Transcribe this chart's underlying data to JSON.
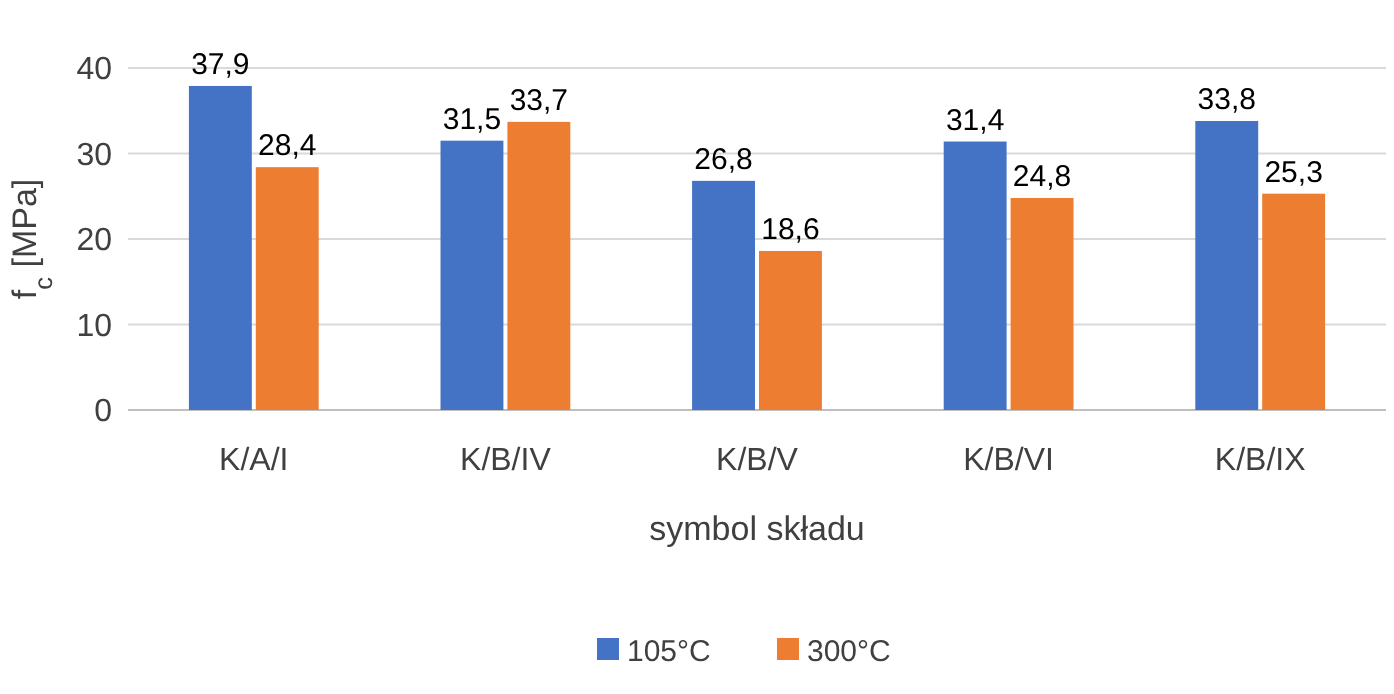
{
  "chart_data": {
    "type": "bar",
    "xlabel": "symbol składu",
    "ylabel": "f$_{c}$ [MPa]",
    "categories": [
      "K/A/I",
      "K/B/IV",
      "K/B/V",
      "K/B/VI",
      "K/B/IX"
    ],
    "series": [
      {
        "name": "105°C",
        "color": "#4472c4",
        "values": [
          37.9,
          31.5,
          26.8,
          31.4,
          33.8
        ],
        "value_labels": [
          "37,9",
          "31,5",
          "26,8",
          "31,4",
          "33,8"
        ]
      },
      {
        "name": "300°C",
        "color": "#ed7d31",
        "values": [
          28.4,
          33.7,
          18.6,
          24.8,
          25.3
        ],
        "value_labels": [
          "28,4",
          "33,7",
          "18,6",
          "24,8",
          "25,3"
        ]
      }
    ],
    "ylim": [
      0,
      40
    ],
    "yticks": [
      0,
      10,
      20,
      30,
      40
    ],
    "grid": "y",
    "legend": "bottom"
  }
}
